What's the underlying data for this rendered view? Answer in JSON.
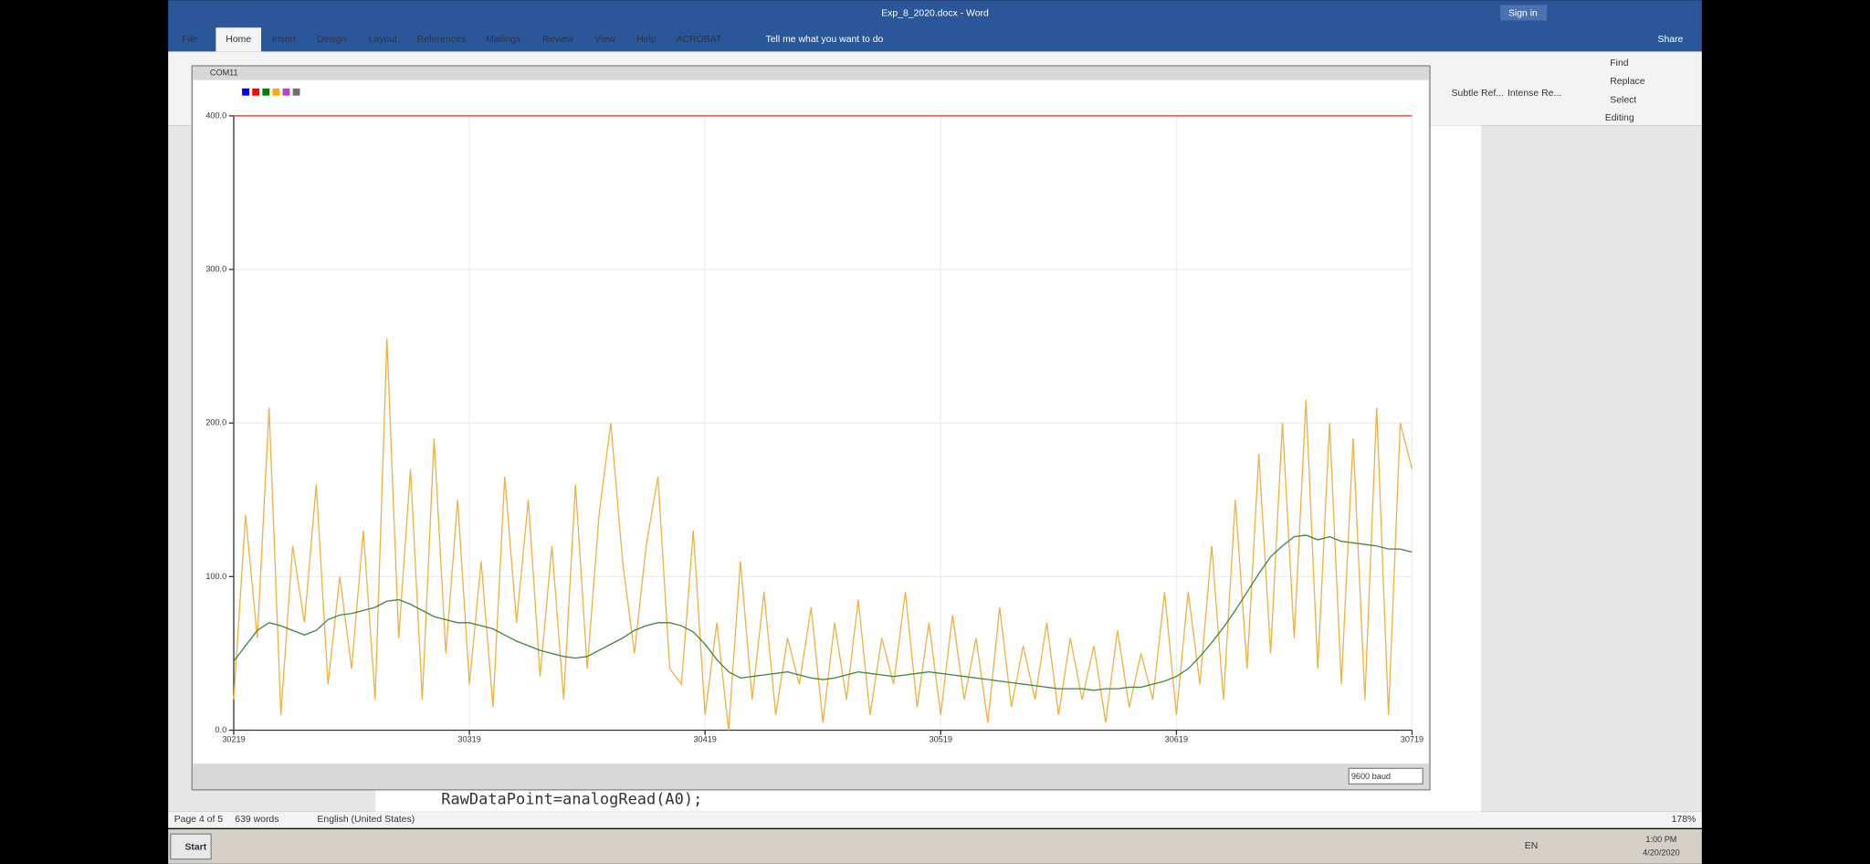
{
  "ui": {
    "doc_title": "Exp_8_2020.docx - Word",
    "sign_in": "Sign in",
    "tabs": [
      "File",
      "Home",
      "Insert",
      "Design",
      "Layout",
      "References",
      "Mailings",
      "Review",
      "View",
      "Help",
      "ACROBAT"
    ],
    "tell_me": "Tell me what you want to do",
    "share": "Share",
    "styles": [
      "Subtle Ref...",
      "Intense Re..."
    ],
    "editing": [
      "Find",
      "Replace",
      "Select"
    ],
    "editing_group": "Editing",
    "plotter_title": "COM11",
    "baud": "9600 baud",
    "code_line": "RawDataPoint=analogRead(A0);",
    "status": [
      "Page 4 of 5",
      "639 words",
      "English (United States)"
    ],
    "zoom": "178%",
    "start": "Start",
    "lang": "EN",
    "clock": [
      "1:00 PM",
      "4/20/2020"
    ]
  },
  "chart_data": {
    "type": "line",
    "legend_colors": [
      "#0000ff",
      "#ff0000",
      "#008000",
      "#ffa500",
      "#c040c0",
      "#707070"
    ],
    "xlim": [
      30219,
      30719
    ],
    "xticks": [
      30219,
      30319,
      30419,
      30519,
      30619,
      30719
    ],
    "ylim": [
      0,
      400
    ],
    "yticks": [
      {
        "value": 0,
        "label": "0.0"
      },
      {
        "value": 100,
        "label": "100.0"
      },
      {
        "value": 200,
        "label": "200.0"
      },
      {
        "value": 300,
        "label": "300.0"
      },
      {
        "value": 400,
        "label": "400.0"
      }
    ],
    "grid": true,
    "x": [
      30219,
      30224,
      30229,
      30234,
      30239,
      30244,
      30249,
      30254,
      30259,
      30264,
      30269,
      30274,
      30279,
      30284,
      30289,
      30294,
      30299,
      30304,
      30309,
      30314,
      30319,
      30324,
      30329,
      30334,
      30339,
      30344,
      30349,
      30354,
      30359,
      30364,
      30369,
      30374,
      30379,
      30384,
      30389,
      30394,
      30399,
      30404,
      30409,
      30414,
      30419,
      30424,
      30429,
      30434,
      30439,
      30444,
      30449,
      30454,
      30459,
      30464,
      30469,
      30474,
      30479,
      30484,
      30489,
      30494,
      30499,
      30504,
      30509,
      30514,
      30519,
      30524,
      30529,
      30534,
      30539,
      30544,
      30549,
      30554,
      30559,
      30564,
      30569,
      30574,
      30579,
      30584,
      30589,
      30594,
      30599,
      30604,
      30609,
      30614,
      30619,
      30624,
      30629,
      30634,
      30639,
      30644,
      30649,
      30654,
      30659,
      30664,
      30669,
      30674,
      30679,
      30684,
      30689,
      30694,
      30699,
      30704,
      30709,
      30714,
      30719
    ],
    "series": [
      {
        "color": "#e03020",
        "x": [
          30219,
          30719
        ],
        "values": [
          400,
          400
        ]
      },
      {
        "color": "#f0b040",
        "values": [
          20,
          140,
          60,
          210,
          10,
          120,
          70,
          160,
          30,
          100,
          40,
          130,
          20,
          255,
          60,
          170,
          20,
          190,
          50,
          150,
          30,
          110,
          15,
          165,
          70,
          150,
          35,
          120,
          20,
          160,
          40,
          140,
          200,
          110,
          50,
          120,
          165,
          40,
          30,
          130,
          10,
          70,
          0,
          110,
          20,
          90,
          10,
          60,
          30,
          80,
          5,
          70,
          20,
          85,
          10,
          60,
          30,
          90,
          15,
          70,
          10,
          75,
          20,
          60,
          5,
          80,
          15,
          55,
          20,
          70,
          10,
          60,
          20,
          55,
          5,
          65,
          15,
          50,
          20,
          90,
          10,
          90,
          30,
          120,
          20,
          150,
          40,
          180,
          50,
          200,
          60,
          215,
          40,
          200,
          30,
          190,
          20,
          210,
          10,
          200,
          170
        ]
      },
      {
        "color": "#3a8a3a",
        "values": [
          45,
          55,
          65,
          70,
          68,
          65,
          62,
          65,
          72,
          75,
          76,
          78,
          80,
          84,
          85,
          82,
          78,
          74,
          72,
          70,
          70,
          68,
          66,
          62,
          58,
          55,
          52,
          50,
          48,
          47,
          48,
          52,
          56,
          60,
          65,
          68,
          70,
          70,
          68,
          64,
          56,
          46,
          38,
          34,
          35,
          36,
          37,
          38,
          36,
          34,
          33,
          34,
          36,
          38,
          37,
          36,
          35,
          36,
          37,
          38,
          37,
          36,
          35,
          34,
          33,
          32,
          31,
          30,
          29,
          28,
          27,
          27,
          27,
          26,
          27,
          27,
          28,
          28,
          30,
          32,
          35,
          40,
          48,
          57,
          67,
          78,
          90,
          102,
          113,
          120,
          126,
          127,
          124,
          126,
          123,
          122,
          121,
          120,
          118,
          118,
          116
        ]
      }
    ]
  }
}
